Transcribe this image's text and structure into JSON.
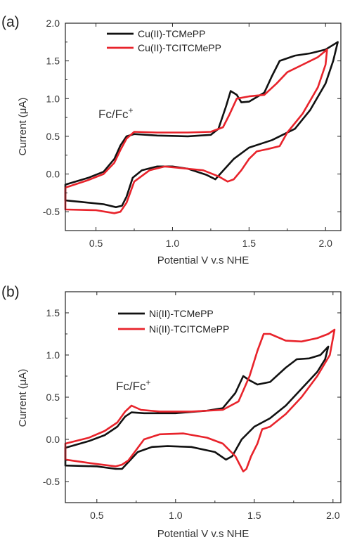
{
  "chart_data": [
    {
      "type": "line",
      "panel_label": "(a)",
      "xlabel": "Potential V v.s NHE",
      "ylabel": "Current (μA)",
      "xlim": [
        0.3,
        2.1
      ],
      "ylim": [
        -0.75,
        2.0
      ],
      "xticks": [
        0.5,
        1.0,
        1.5,
        2.0
      ],
      "xtick_labels": [
        "0.5",
        "1.0",
        "1.5",
        "2.0"
      ],
      "yticks": [
        -0.5,
        0.0,
        0.5,
        1.0,
        1.5,
        2.0
      ],
      "ytick_labels": [
        "-0.5",
        "0.0",
        "0.5",
        "1.0",
        "1.5",
        "2.0"
      ],
      "grid": false,
      "legend_position": "top-center",
      "annotation": {
        "text": "Fc/Fc",
        "sup": "+",
        "x": 0.45,
        "y": 0.8
      },
      "series": [
        {
          "name": "Cu(II)-TCMePP",
          "color": "#111111",
          "points": [
            [
              0.3,
              -0.14
            ],
            [
              0.45,
              -0.05
            ],
            [
              0.55,
              0.03
            ],
            [
              0.62,
              0.2
            ],
            [
              0.66,
              0.38
            ],
            [
              0.7,
              0.5
            ],
            [
              0.75,
              0.53
            ],
            [
              0.9,
              0.51
            ],
            [
              1.1,
              0.5
            ],
            [
              1.25,
              0.52
            ],
            [
              1.3,
              0.6
            ],
            [
              1.35,
              0.9
            ],
            [
              1.38,
              1.1
            ],
            [
              1.42,
              1.05
            ],
            [
              1.45,
              0.95
            ],
            [
              1.5,
              0.96
            ],
            [
              1.6,
              1.08
            ],
            [
              1.65,
              1.3
            ],
            [
              1.7,
              1.5
            ],
            [
              1.8,
              1.57
            ],
            [
              1.9,
              1.6
            ],
            [
              2.0,
              1.65
            ],
            [
              2.08,
              1.75
            ],
            [
              2.05,
              1.5
            ],
            [
              2.0,
              1.2
            ],
            [
              1.9,
              0.85
            ],
            [
              1.8,
              0.6
            ],
            [
              1.65,
              0.45
            ],
            [
              1.5,
              0.35
            ],
            [
              1.4,
              0.2
            ],
            [
              1.32,
              0.02
            ],
            [
              1.28,
              -0.07
            ],
            [
              1.22,
              -0.01
            ],
            [
              1.1,
              0.07
            ],
            [
              1.0,
              0.1
            ],
            [
              0.9,
              0.1
            ],
            [
              0.8,
              0.05
            ],
            [
              0.74,
              -0.05
            ],
            [
              0.7,
              -0.3
            ],
            [
              0.67,
              -0.42
            ],
            [
              0.63,
              -0.44
            ],
            [
              0.55,
              -0.4
            ],
            [
              0.4,
              -0.37
            ],
            [
              0.3,
              -0.35
            ]
          ]
        },
        {
          "name": "Cu(II)-TCITCMePP",
          "color": "#e8232b",
          "points": [
            [
              0.3,
              -0.18
            ],
            [
              0.45,
              -0.08
            ],
            [
              0.55,
              0.0
            ],
            [
              0.62,
              0.15
            ],
            [
              0.66,
              0.32
            ],
            [
              0.7,
              0.47
            ],
            [
              0.75,
              0.56
            ],
            [
              0.9,
              0.55
            ],
            [
              1.1,
              0.55
            ],
            [
              1.25,
              0.56
            ],
            [
              1.33,
              0.62
            ],
            [
              1.37,
              0.78
            ],
            [
              1.42,
              1.0
            ],
            [
              1.5,
              1.03
            ],
            [
              1.6,
              1.05
            ],
            [
              1.68,
              1.2
            ],
            [
              1.75,
              1.35
            ],
            [
              1.85,
              1.45
            ],
            [
              1.95,
              1.55
            ],
            [
              2.01,
              1.65
            ],
            [
              2.0,
              1.45
            ],
            [
              1.95,
              1.15
            ],
            [
              1.85,
              0.8
            ],
            [
              1.75,
              0.55
            ],
            [
              1.7,
              0.37
            ],
            [
              1.62,
              0.33
            ],
            [
              1.55,
              0.3
            ],
            [
              1.5,
              0.2
            ],
            [
              1.45,
              0.05
            ],
            [
              1.4,
              -0.07
            ],
            [
              1.36,
              -0.1
            ],
            [
              1.3,
              -0.03
            ],
            [
              1.2,
              0.05
            ],
            [
              1.05,
              0.08
            ],
            [
              0.95,
              0.1
            ],
            [
              0.85,
              0.05
            ],
            [
              0.75,
              -0.1
            ],
            [
              0.7,
              -0.38
            ],
            [
              0.66,
              -0.5
            ],
            [
              0.62,
              -0.52
            ],
            [
              0.5,
              -0.48
            ],
            [
              0.3,
              -0.47
            ]
          ]
        }
      ]
    },
    {
      "type": "line",
      "panel_label": "(b)",
      "xlabel": "Potential V v.s NHE",
      "ylabel": "Current (μA)",
      "xlim": [
        0.3,
        2.05
      ],
      "ylim": [
        -0.75,
        1.75
      ],
      "xticks": [
        0.5,
        1.0,
        1.5,
        2.0
      ],
      "xtick_labels": [
        "0.5",
        "1.0",
        "1.5",
        "2.0"
      ],
      "yticks": [
        -0.5,
        0.0,
        0.5,
        1.0,
        1.5
      ],
      "ytick_labels": [
        "-0.5",
        "0.0",
        "0.5",
        "1.0",
        "1.5"
      ],
      "grid": false,
      "legend_position": "top-center",
      "annotation": {
        "text": "Fc/Fc",
        "sup": "+",
        "x": 0.43,
        "y": 0.68
      },
      "series": [
        {
          "name": "Ni(II)-TCMePP",
          "color": "#111111",
          "points": [
            [
              0.3,
              -0.1
            ],
            [
              0.45,
              -0.02
            ],
            [
              0.55,
              0.05
            ],
            [
              0.63,
              0.15
            ],
            [
              0.68,
              0.27
            ],
            [
              0.72,
              0.32
            ],
            [
              0.8,
              0.31
            ],
            [
              1.0,
              0.31
            ],
            [
              1.2,
              0.34
            ],
            [
              1.3,
              0.37
            ],
            [
              1.38,
              0.55
            ],
            [
              1.43,
              0.75
            ],
            [
              1.47,
              0.7
            ],
            [
              1.52,
              0.65
            ],
            [
              1.6,
              0.68
            ],
            [
              1.7,
              0.85
            ],
            [
              1.77,
              0.95
            ],
            [
              1.85,
              0.96
            ],
            [
              1.92,
              1.0
            ],
            [
              1.97,
              1.1
            ],
            [
              1.95,
              0.95
            ],
            [
              1.9,
              0.8
            ],
            [
              1.8,
              0.6
            ],
            [
              1.7,
              0.4
            ],
            [
              1.6,
              0.25
            ],
            [
              1.5,
              0.15
            ],
            [
              1.42,
              0.0
            ],
            [
              1.36,
              -0.2
            ],
            [
              1.32,
              -0.24
            ],
            [
              1.25,
              -0.15
            ],
            [
              1.1,
              -0.09
            ],
            [
              0.95,
              -0.08
            ],
            [
              0.85,
              -0.09
            ],
            [
              0.76,
              -0.15
            ],
            [
              0.7,
              -0.27
            ],
            [
              0.66,
              -0.35
            ],
            [
              0.62,
              -0.35
            ],
            [
              0.5,
              -0.32
            ],
            [
              0.3,
              -0.31
            ]
          ]
        },
        {
          "name": "Ni(II)-TCITCMePP",
          "color": "#e8232b",
          "points": [
            [
              0.3,
              -0.05
            ],
            [
              0.45,
              0.02
            ],
            [
              0.55,
              0.1
            ],
            [
              0.63,
              0.2
            ],
            [
              0.68,
              0.33
            ],
            [
              0.72,
              0.4
            ],
            [
              0.78,
              0.35
            ],
            [
              0.9,
              0.33
            ],
            [
              1.1,
              0.33
            ],
            [
              1.3,
              0.35
            ],
            [
              1.4,
              0.45
            ],
            [
              1.47,
              0.75
            ],
            [
              1.52,
              1.05
            ],
            [
              1.56,
              1.25
            ],
            [
              1.6,
              1.25
            ],
            [
              1.7,
              1.17
            ],
            [
              1.8,
              1.16
            ],
            [
              1.9,
              1.2
            ],
            [
              1.97,
              1.25
            ],
            [
              2.01,
              1.3
            ],
            [
              1.98,
              1.0
            ],
            [
              1.9,
              0.75
            ],
            [
              1.8,
              0.5
            ],
            [
              1.7,
              0.3
            ],
            [
              1.6,
              0.15
            ],
            [
              1.55,
              0.12
            ],
            [
              1.52,
              -0.05
            ],
            [
              1.48,
              -0.2
            ],
            [
              1.45,
              -0.35
            ],
            [
              1.43,
              -0.38
            ],
            [
              1.38,
              -0.2
            ],
            [
              1.3,
              -0.05
            ],
            [
              1.2,
              0.02
            ],
            [
              1.05,
              0.07
            ],
            [
              0.9,
              0.06
            ],
            [
              0.8,
              0.0
            ],
            [
              0.74,
              -0.15
            ],
            [
              0.7,
              -0.25
            ],
            [
              0.66,
              -0.3
            ],
            [
              0.62,
              -0.32
            ],
            [
              0.45,
              -0.28
            ],
            [
              0.3,
              -0.24
            ]
          ]
        }
      ]
    }
  ]
}
